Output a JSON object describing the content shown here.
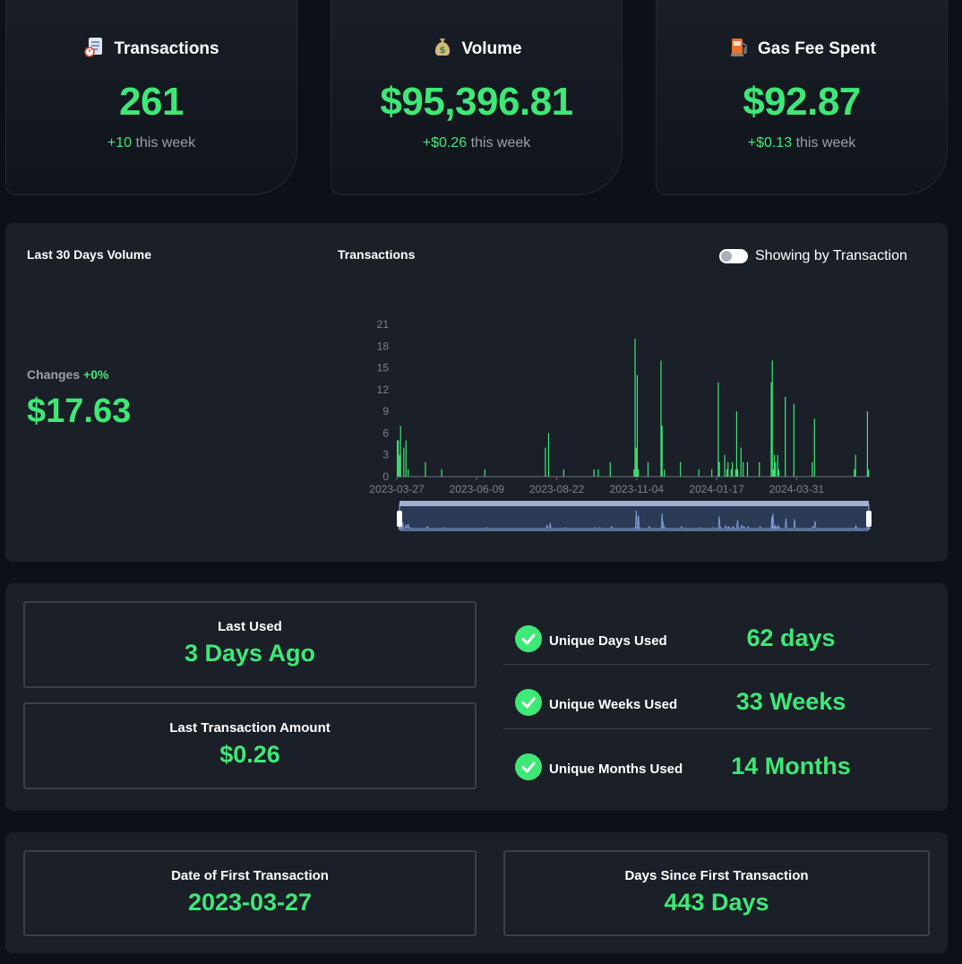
{
  "cards": [
    {
      "icon": "document-icon",
      "title": "Transactions",
      "value": "261",
      "delta": "+10",
      "delta_suffix": "this week"
    },
    {
      "icon": "money-bag-icon",
      "title": "Volume",
      "value": "$95,396.81",
      "delta": "+$0.26",
      "delta_suffix": "this week"
    },
    {
      "icon": "fuel-pump-icon",
      "title": "Gas Fee Spent",
      "value": "$92.87",
      "delta": "+$0.13",
      "delta_suffix": "this week"
    }
  ],
  "volume_panel": {
    "left_title": "Last 30 Days Volume",
    "changes_label": "Changes",
    "changes_value": "+0%",
    "amount": "$17.63",
    "chart_title": "Transactions",
    "toggle_label": "Showing by Transaction"
  },
  "chart_data": {
    "type": "bar",
    "title": "Transactions",
    "xlabel": "",
    "ylabel": "",
    "ylim": [
      0,
      21
    ],
    "yticks": [
      "0",
      "3",
      "6",
      "9",
      "12",
      "15",
      "18",
      "21"
    ],
    "xticks": [
      "2023-03-27",
      "2023-06-09",
      "2023-08-22",
      "2023-11-04",
      "2024-01-17",
      "2024-03-31"
    ],
    "x": [
      "2023-03-27",
      "2023-03-28",
      "2023-03-29",
      "2023-03-30",
      "2023-04-02",
      "2023-04-04",
      "2023-04-06",
      "2023-04-22",
      "2023-05-07",
      "2023-06-16",
      "2023-08-11",
      "2023-08-14",
      "2023-08-28",
      "2023-09-25",
      "2023-09-29",
      "2023-10-10",
      "2023-11-01",
      "2023-11-02",
      "2023-11-03",
      "2023-11-04",
      "2023-11-05",
      "2023-11-14",
      "2023-11-26",
      "2023-11-27",
      "2023-11-29",
      "2023-12-14",
      "2023-12-31",
      "2024-01-12",
      "2024-01-18",
      "2024-01-19",
      "2024-01-24",
      "2024-01-26",
      "2024-01-27",
      "2024-01-30",
      "2024-01-31",
      "2024-02-03",
      "2024-02-04",
      "2024-02-05",
      "2024-02-08",
      "2024-02-10",
      "2024-02-14",
      "2024-02-25",
      "2024-03-07",
      "2024-03-08",
      "2024-03-09",
      "2024-03-10",
      "2024-03-11",
      "2024-03-13",
      "2024-03-14",
      "2024-03-20",
      "2024-03-28",
      "2024-04-14",
      "2024-04-16",
      "2024-05-23",
      "2024-05-24",
      "2024-06-04",
      "2024-06-05"
    ],
    "values": [
      5,
      5,
      3,
      7,
      4,
      5,
      1,
      2,
      1,
      1,
      4,
      6,
      1,
      1,
      1,
      2,
      1,
      19,
      4,
      14,
      1,
      2,
      16,
      7,
      1,
      2,
      1,
      1,
      13,
      2,
      3,
      1,
      2,
      1,
      2,
      1,
      9,
      1,
      4,
      2,
      2,
      2,
      13,
      16,
      1,
      3,
      2,
      3,
      1,
      11,
      10,
      2,
      8,
      1,
      3,
      9,
      1
    ]
  },
  "usage": {
    "last_used_label": "Last Used",
    "last_used_value": "3 Days Ago",
    "last_amount_label": "Last Transaction Amount",
    "last_amount_value": "$0.26",
    "rows": [
      {
        "label": "Unique Days Used",
        "value": "62 days"
      },
      {
        "label": "Unique Weeks Used",
        "value": "33 Weeks"
      },
      {
        "label": "Unique Months Used",
        "value": "14 Months"
      }
    ]
  },
  "first_tx": {
    "date_label": "Date of First Transaction",
    "date_value": "2023-03-27",
    "days_label": "Days Since First Transaction",
    "days_value": "443 Days"
  },
  "colors": {
    "accent": "#3ee876",
    "panel": "#1a1f28",
    "background": "#0d1016"
  }
}
